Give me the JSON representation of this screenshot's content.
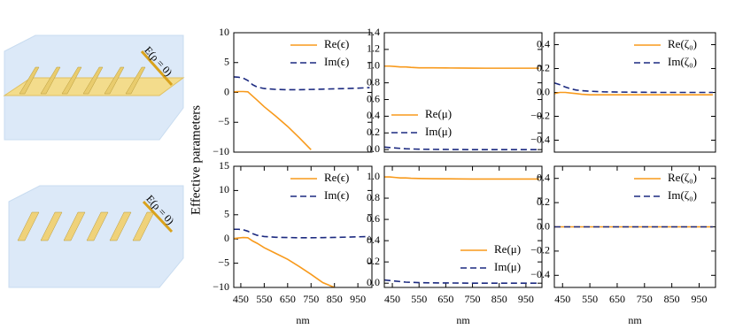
{
  "ylabel": "Effective parameters",
  "illustrations": [
    {
      "label": "E(ρ = 0)"
    },
    {
      "label": "E(ρ = 0)"
    }
  ],
  "chart_data": [
    {
      "type": "line",
      "x": [
        420,
        440,
        460,
        480,
        500,
        520,
        550,
        600,
        650,
        700,
        750,
        800,
        850,
        900,
        950,
        1000
      ],
      "xlim": [
        420,
        1010
      ],
      "ylim": [
        -10,
        10
      ],
      "yticks": [
        {
          "value": -10,
          "label": "−10"
        },
        {
          "value": -5,
          "label": "−5"
        },
        0,
        5,
        10
      ],
      "legend": "upper right",
      "series": [
        {
          "name": "Re(ϵ)",
          "color": "#f89a1c",
          "linestyle": "solid",
          "values": [
            0.1,
            0.15,
            0.15,
            0.1,
            -0.6,
            -1.3,
            -2.4,
            -4,
            -5.7,
            -7.6,
            -9.6,
            null,
            null,
            null,
            null,
            null
          ]
        },
        {
          "name": "Im(ϵ)",
          "color": "#1c2a80",
          "linestyle": "dashed",
          "values": [
            2.6,
            2.55,
            2.4,
            2.0,
            1.3,
            0.9,
            0.65,
            0.5,
            0.45,
            0.45,
            0.5,
            0.55,
            0.6,
            0.65,
            0.72,
            0.8
          ]
        }
      ]
    },
    {
      "type": "line",
      "x": [
        420,
        440,
        460,
        480,
        500,
        520,
        550,
        600,
        650,
        700,
        750,
        800,
        850,
        900,
        950,
        1000
      ],
      "xlim": [
        420,
        1010
      ],
      "ylim": [
        -0.03,
        1.4
      ],
      "yticks": [
        {
          "value": 0,
          "label": "0.0"
        },
        0.2,
        0.4,
        0.6,
        0.8,
        {
          "value": 1,
          "label": "1.0"
        },
        1.2,
        1.4
      ],
      "legend": "lower left",
      "series": [
        {
          "name": "Re(μ)",
          "color": "#f89a1c",
          "linestyle": "solid",
          "values": [
            1.0,
            1.0,
            0.995,
            0.99,
            0.99,
            0.985,
            0.98,
            0.98,
            0.978,
            0.977,
            0.976,
            0.975,
            0.975,
            0.975,
            0.975,
            0.975
          ]
        },
        {
          "name": "Im(μ)",
          "color": "#1c2a80",
          "linestyle": "dashed",
          "values": [
            0.03,
            0.025,
            0.02,
            0.015,
            0.01,
            0.008,
            0.005,
            0.003,
            0.002,
            0.001,
            0,
            0,
            0,
            0,
            0,
            0
          ]
        }
      ]
    },
    {
      "type": "line",
      "x": [
        420,
        440,
        460,
        480,
        500,
        520,
        550,
        600,
        650,
        700,
        750,
        800,
        850,
        900,
        950,
        1000
      ],
      "xlim": [
        420,
        1010
      ],
      "ylim": [
        -0.5,
        0.5
      ],
      "yticks": [
        {
          "value": -0.4,
          "label": "−0.4"
        },
        {
          "value": -0.2,
          "label": "−0.2"
        },
        {
          "value": 0,
          "label": "0.0"
        },
        0.2,
        0.4
      ],
      "legend": "upper right",
      "series": [
        {
          "name": "Re(ζ₀)",
          "color": "#f89a1c",
          "linestyle": "solid",
          "values": [
            -0.01,
            0,
            0,
            -0.005,
            -0.01,
            -0.015,
            -0.02,
            -0.02,
            -0.02,
            -0.02,
            -0.02,
            -0.02,
            -0.02,
            -0.02,
            -0.02,
            -0.02
          ]
        },
        {
          "name": "Im(ζ₀)",
          "color": "#1c2a80",
          "linestyle": "dashed",
          "values": [
            0.08,
            0.065,
            0.045,
            0.03,
            0.02,
            0.015,
            0.01,
            0.005,
            0.003,
            0.002,
            0.001,
            0,
            0,
            0,
            0,
            0
          ]
        }
      ]
    },
    {
      "type": "line",
      "x": [
        420,
        440,
        460,
        480,
        500,
        520,
        550,
        600,
        650,
        700,
        750,
        800,
        850,
        900,
        950,
        1000
      ],
      "xlim": [
        420,
        1010
      ],
      "ylim": [
        -10,
        15
      ],
      "xlabel": "nm",
      "xticks": [
        450,
        550,
        650,
        750,
        850,
        950
      ],
      "yticks": [
        {
          "value": -10,
          "label": "−10"
        },
        {
          "value": -5,
          "label": "−5"
        },
        0,
        5,
        10,
        15
      ],
      "legend": "upper right",
      "series": [
        {
          "name": "Re(ϵ)",
          "color": "#f89a1c",
          "linestyle": "solid",
          "values": [
            0.1,
            0.2,
            0.3,
            0.25,
            -0.4,
            -0.9,
            -1.8,
            -3.0,
            -4.2,
            -5.7,
            -7.3,
            -9.0,
            -10,
            null,
            null,
            null
          ]
        },
        {
          "name": "Im(ϵ)",
          "color": "#1c2a80",
          "linestyle": "dashed",
          "values": [
            2.0,
            2.0,
            1.9,
            1.6,
            1.1,
            0.75,
            0.5,
            0.35,
            0.3,
            0.25,
            0.25,
            0.28,
            0.32,
            0.38,
            0.44,
            0.5
          ]
        }
      ]
    },
    {
      "type": "line",
      "x": [
        420,
        440,
        460,
        480,
        500,
        520,
        550,
        600,
        650,
        700,
        750,
        800,
        850,
        900,
        950,
        1000
      ],
      "xlim": [
        420,
        1010
      ],
      "ylim": [
        -0.04,
        1.1
      ],
      "xlabel": "nm",
      "xticks": [
        450,
        550,
        650,
        750,
        850,
        950
      ],
      "yticks": [
        {
          "value": 0,
          "label": "0.0"
        },
        0.2,
        0.4,
        0.6,
        0.8,
        {
          "value": 1,
          "label": "1.0"
        }
      ],
      "legend": "lower right",
      "series": [
        {
          "name": "Re(μ)",
          "color": "#f89a1c",
          "linestyle": "solid",
          "values": [
            1.0,
            1.0,
            0.995,
            0.99,
            0.99,
            0.987,
            0.985,
            0.983,
            0.982,
            0.981,
            0.98,
            0.98,
            0.98,
            0.98,
            0.98,
            0.98
          ]
        },
        {
          "name": "Im(μ)",
          "color": "#1c2a80",
          "linestyle": "dashed",
          "values": [
            0.03,
            0.025,
            0.02,
            0.015,
            0.01,
            0.008,
            0.005,
            0.003,
            0.002,
            0.001,
            0,
            0,
            0,
            0,
            0,
            0
          ]
        }
      ]
    },
    {
      "type": "line",
      "x": [
        420,
        440,
        460,
        480,
        500,
        520,
        550,
        600,
        650,
        700,
        750,
        800,
        850,
        900,
        950,
        1000
      ],
      "xlim": [
        420,
        1010
      ],
      "ylim": [
        -0.5,
        0.5
      ],
      "xlabel": "nm",
      "xticks": [
        450,
        550,
        650,
        750,
        850,
        950
      ],
      "yticks": [
        {
          "value": -0.4,
          "label": "−0.4"
        },
        {
          "value": -0.2,
          "label": "−0.2"
        },
        {
          "value": 0,
          "label": "0.0"
        },
        0.2,
        0.4
      ],
      "legend": "upper right",
      "series": [
        {
          "name": "Re(ζ₀)",
          "color": "#f89a1c",
          "linestyle": "solid",
          "values": [
            0,
            0,
            0,
            0,
            0,
            0,
            0,
            0,
            0,
            0,
            0,
            0,
            0,
            0,
            0,
            0
          ]
        },
        {
          "name": "Im(ζ₀)",
          "color": "#1c2a80",
          "linestyle": "dashed",
          "values": [
            0,
            0,
            0,
            0,
            0,
            0,
            0,
            0,
            0,
            0,
            0,
            0,
            0,
            0,
            0,
            0
          ]
        }
      ]
    }
  ]
}
